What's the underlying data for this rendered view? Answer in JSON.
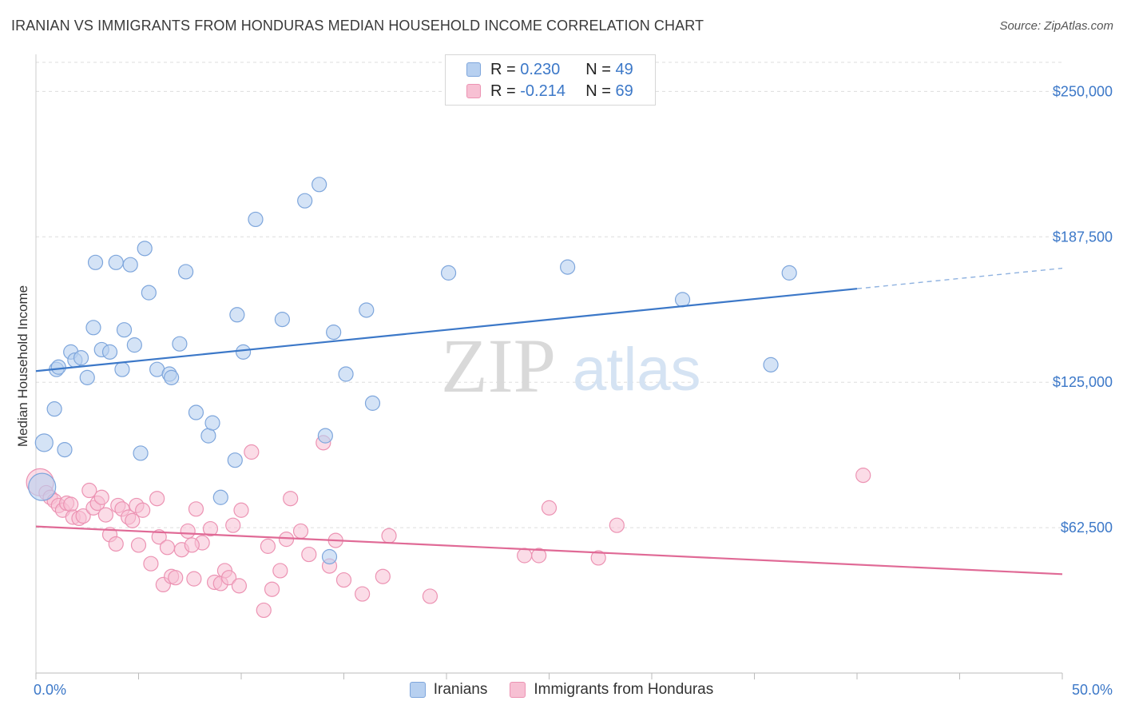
{
  "header": {
    "title": "IRANIAN VS IMMIGRANTS FROM HONDURAS MEDIAN HOUSEHOLD INCOME CORRELATION CHART",
    "source": "Source: ZipAtlas.com"
  },
  "watermark": {
    "zip": "ZIP",
    "atlas": "atlas"
  },
  "colors": {
    "blue": "#3c78c8",
    "blue_fill": "#b7d0f0",
    "blue_stroke": "#7ea6dc",
    "pink": "#e06a96",
    "pink_fill": "#f7c0d3",
    "pink_stroke": "#ec93b3",
    "grid": "#dddddd"
  },
  "legend": {
    "rows": [
      {
        "r_label": "R =",
        "r_value": "0.230",
        "n_label": "N =",
        "n_value": "49"
      },
      {
        "r_label": "R =",
        "r_value": "-0.214",
        "n_label": "N =",
        "n_value": "69"
      }
    ]
  },
  "bottom_legend": {
    "series1": "Iranians",
    "series2": "Immigrants from Honduras"
  },
  "chart_data": {
    "type": "scatter",
    "title": "IRANIAN VS IMMIGRANTS FROM HONDURAS MEDIAN HOUSEHOLD INCOME CORRELATION CHART",
    "xlabel": "",
    "ylabel": "Median Household Income",
    "xlim": [
      0,
      50
    ],
    "ylim": [
      0,
      262500
    ],
    "x_tick_labels": [
      "0.0%",
      "50.0%"
    ],
    "y_ticks": [
      62500,
      125000,
      187500,
      250000
    ],
    "y_tick_labels": [
      "$62,500",
      "$125,000",
      "$187,500",
      "$250,000"
    ],
    "grid": true,
    "legend_position": "top-center",
    "series": [
      {
        "name": "Iranians",
        "color": "#3c78c8",
        "r": 0.23,
        "n": 49,
        "trend": {
          "x0": 0,
          "y0": 129800,
          "x1": 40,
          "y1": 165200,
          "dashed_to_x": 50,
          "dashed_to_y": 174000
        },
        "points": [
          [
            0.3,
            80000
          ],
          [
            0.4,
            99000
          ],
          [
            0.9,
            113500
          ],
          [
            1.0,
            130500
          ],
          [
            1.1,
            131500
          ],
          [
            1.4,
            96000
          ],
          [
            1.7,
            138000
          ],
          [
            1.9,
            134500
          ],
          [
            2.2,
            135500
          ],
          [
            2.5,
            127000
          ],
          [
            2.8,
            148500
          ],
          [
            2.9,
            176500
          ],
          [
            3.2,
            139000
          ],
          [
            3.6,
            138000
          ],
          [
            3.9,
            176500
          ],
          [
            4.2,
            130500
          ],
          [
            4.3,
            147500
          ],
          [
            4.6,
            175500
          ],
          [
            4.8,
            141000
          ],
          [
            5.1,
            94500
          ],
          [
            5.3,
            182500
          ],
          [
            5.5,
            163500
          ],
          [
            5.9,
            130500
          ],
          [
            6.5,
            128500
          ],
          [
            6.6,
            127000
          ],
          [
            7.0,
            141500
          ],
          [
            7.3,
            172500
          ],
          [
            7.8,
            112000
          ],
          [
            8.4,
            102000
          ],
          [
            8.6,
            107500
          ],
          [
            9.0,
            75500
          ],
          [
            9.7,
            91500
          ],
          [
            9.8,
            154000
          ],
          [
            10.1,
            138000
          ],
          [
            10.7,
            195000
          ],
          [
            12.0,
            152000
          ],
          [
            13.1,
            203000
          ],
          [
            13.8,
            210000
          ],
          [
            14.1,
            102000
          ],
          [
            14.3,
            50000
          ],
          [
            14.5,
            146500
          ],
          [
            15.1,
            128500
          ],
          [
            16.1,
            156000
          ],
          [
            16.4,
            116000
          ],
          [
            20.1,
            172000
          ],
          [
            25.9,
            174500
          ],
          [
            31.5,
            160500
          ],
          [
            35.8,
            132500
          ],
          [
            36.7,
            172000
          ]
        ]
      },
      {
        "name": "Immigrants from Honduras",
        "color": "#e06a96",
        "r": -0.214,
        "n": 69,
        "trend": {
          "x0": 0,
          "y0": 63000,
          "x1": 50,
          "y1": 42500
        },
        "points": [
          [
            0.2,
            82000
          ],
          [
            0.5,
            77500
          ],
          [
            0.7,
            75500
          ],
          [
            0.9,
            74000
          ],
          [
            1.1,
            72000
          ],
          [
            1.3,
            70000
          ],
          [
            1.5,
            73000
          ],
          [
            1.7,
            72500
          ],
          [
            1.8,
            67000
          ],
          [
            2.1,
            66500
          ],
          [
            2.3,
            67500
          ],
          [
            2.6,
            78500
          ],
          [
            2.8,
            71000
          ],
          [
            3.0,
            73000
          ],
          [
            3.2,
            75500
          ],
          [
            3.4,
            68000
          ],
          [
            3.6,
            59500
          ],
          [
            3.9,
            55500
          ],
          [
            4.0,
            72000
          ],
          [
            4.2,
            70500
          ],
          [
            4.5,
            67000
          ],
          [
            4.7,
            65500
          ],
          [
            4.9,
            72000
          ],
          [
            5.0,
            55000
          ],
          [
            5.2,
            70000
          ],
          [
            5.6,
            47000
          ],
          [
            5.9,
            75000
          ],
          [
            6.0,
            58500
          ],
          [
            6.2,
            38000
          ],
          [
            6.4,
            54000
          ],
          [
            6.6,
            41500
          ],
          [
            6.8,
            41000
          ],
          [
            7.1,
            53000
          ],
          [
            7.4,
            61000
          ],
          [
            7.7,
            40500
          ],
          [
            7.8,
            70500
          ],
          [
            8.1,
            56000
          ],
          [
            8.5,
            62000
          ],
          [
            8.7,
            39000
          ],
          [
            9.0,
            38500
          ],
          [
            9.2,
            44000
          ],
          [
            9.4,
            41000
          ],
          [
            9.6,
            63500
          ],
          [
            9.9,
            37500
          ],
          [
            10.0,
            70000
          ],
          [
            10.5,
            95000
          ],
          [
            11.1,
            27000
          ],
          [
            11.3,
            54500
          ],
          [
            11.5,
            36000
          ],
          [
            11.9,
            44000
          ],
          [
            12.2,
            57500
          ],
          [
            12.4,
            75000
          ],
          [
            12.9,
            61000
          ],
          [
            13.3,
            51000
          ],
          [
            14.0,
            99000
          ],
          [
            14.3,
            46000
          ],
          [
            14.6,
            57000
          ],
          [
            15.0,
            40000
          ],
          [
            15.9,
            34000
          ],
          [
            16.9,
            41500
          ],
          [
            17.2,
            59000
          ],
          [
            19.2,
            33000
          ],
          [
            23.8,
            50500
          ],
          [
            24.5,
            50500
          ],
          [
            25.0,
            71000
          ],
          [
            27.4,
            49500
          ],
          [
            28.3,
            63500
          ],
          [
            40.3,
            85000
          ],
          [
            7.6,
            55000
          ]
        ]
      }
    ]
  }
}
